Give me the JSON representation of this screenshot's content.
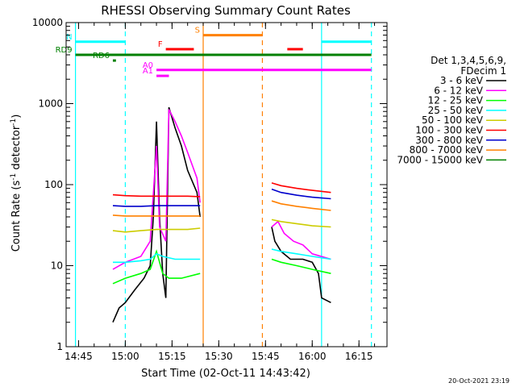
{
  "chart_data": {
    "type": "line",
    "title": "RHESSI Observing Summary Count Rates",
    "xlabel": "Start Time (02-Oct-11 14:43:42)",
    "ylabel_main": "Count Rate (s",
    "ylabel_sup1": "-1",
    "ylabel_mid": " detector",
    "ylabel_sup2": "-1",
    "ylabel_end": ")",
    "y_scale": "log",
    "xlim": [
      "14:41",
      "16:24"
    ],
    "ylim": [
      1,
      10000
    ],
    "x_ticks": [
      "14:45",
      "15:00",
      "15:15",
      "15:30",
      "15:45",
      "16:00",
      "16:15"
    ],
    "y_ticks": [
      "1",
      "10",
      "100",
      "1000",
      "10000"
    ],
    "legend": {
      "header1": "Det 1,3,4,5,6,9,",
      "header2": "FDecim 1",
      "entries": [
        {
          "label": "3 - 6 keV",
          "color": "#000000"
        },
        {
          "label": "6 - 12 keV",
          "color": "#ff00ff"
        },
        {
          "label": "12 - 25 keV",
          "color": "#00ff00"
        },
        {
          "label": "25 - 50 keV",
          "color": "#00ffff"
        },
        {
          "label": "50 - 100 keV",
          "color": "#cccc00"
        },
        {
          "label": "100 - 300 keV",
          "color": "#ff0000"
        },
        {
          "label": "300 - 800 keV",
          "color": "#0000cc"
        },
        {
          "label": "800 - 7000 keV",
          "color": "#ff8000"
        },
        {
          "label": "7000 - 15000 keV",
          "color": "#008000"
        }
      ]
    },
    "flags": [
      {
        "label": "N",
        "color": "#00ffff",
        "y": 5800,
        "segments": [
          [
            "14:44",
            "15:00"
          ],
          [
            "16:03",
            "16:19"
          ]
        ]
      },
      {
        "label": "F",
        "color": "#ff0000",
        "y": 4700,
        "segments": [
          [
            "15:13",
            "15:22"
          ],
          [
            "15:52",
            "15:57"
          ]
        ]
      },
      {
        "label": "S",
        "color": "#ff8000",
        "y": 7000,
        "segments": [
          [
            "15:25",
            "15:44"
          ]
        ]
      },
      {
        "label": "RD9",
        "color": "#008000",
        "y": 4000,
        "segments": [
          [
            "14:44",
            "16:19"
          ]
        ]
      },
      {
        "label": "RD6",
        "color": "#008000",
        "y": 3400,
        "segments": [
          [
            "14:56",
            "14:57"
          ]
        ]
      },
      {
        "label": "A0",
        "color": "#ff00ff",
        "y": 2600,
        "segments": [
          [
            "15:10",
            "16:19"
          ]
        ]
      },
      {
        "label": "A1",
        "color": "#ff00ff",
        "y": 2200,
        "segments": [
          [
            "15:10",
            "15:14"
          ]
        ]
      }
    ],
    "vertical_lines": [
      {
        "x": "14:44",
        "color": "#00ffff",
        "style": "solid"
      },
      {
        "x": "15:00",
        "color": "#00ffff",
        "style": "dashed"
      },
      {
        "x": "15:25",
        "color": "#ff8000",
        "style": "solid"
      },
      {
        "x": "15:44",
        "color": "#ff8000",
        "style": "dashed"
      },
      {
        "x": "16:03",
        "color": "#00ffff",
        "style": "solid"
      },
      {
        "x": "16:19",
        "color": "#00ffff",
        "style": "dashed"
      }
    ],
    "series": [
      {
        "name": "3 - 6 keV",
        "color": "#000000",
        "points": [
          [
            "14:56",
            "2"
          ],
          [
            "14:58",
            "3"
          ],
          [
            "15:00",
            "3.5"
          ],
          [
            "15:03",
            "5"
          ],
          [
            "15:06",
            "7"
          ],
          [
            "15:08",
            "10"
          ],
          [
            "15:09",
            "40"
          ],
          [
            "15:10",
            "600"
          ],
          [
            "15:11",
            "40"
          ],
          [
            "15:12",
            "8"
          ],
          [
            "15:13",
            "4"
          ],
          [
            "15:14",
            "900"
          ],
          [
            "15:16",
            "500"
          ],
          [
            "15:18",
            "300"
          ],
          [
            "15:20",
            "150"
          ],
          [
            "15:23",
            "80"
          ],
          [
            "15:24",
            "40"
          ],
          [
            "15:47",
            "30"
          ],
          [
            "15:48",
            "20"
          ],
          [
            "15:50",
            "15"
          ],
          [
            "15:53",
            "12"
          ],
          [
            "15:57",
            "12"
          ],
          [
            "16:00",
            "11"
          ],
          [
            "16:02",
            "8"
          ],
          [
            "16:03",
            "4"
          ],
          [
            "16:06",
            "3.5"
          ]
        ]
      },
      {
        "name": "6 - 12 keV",
        "color": "#ff00ff",
        "points": [
          [
            "14:56",
            "9"
          ],
          [
            "15:00",
            "11"
          ],
          [
            "15:05",
            "13"
          ],
          [
            "15:08",
            "20"
          ],
          [
            "15:10",
            "300"
          ],
          [
            "15:11",
            "30"
          ],
          [
            "15:13",
            "20"
          ],
          [
            "15:14",
            "850"
          ],
          [
            "15:16",
            "600"
          ],
          [
            "15:18",
            "400"
          ],
          [
            "15:20",
            "250"
          ],
          [
            "15:23",
            "120"
          ],
          [
            "15:24",
            "60"
          ],
          [
            "15:47",
            "30"
          ],
          [
            "15:49",
            "35"
          ],
          [
            "15:51",
            "25"
          ],
          [
            "15:54",
            "20"
          ],
          [
            "15:57",
            "18"
          ],
          [
            "16:00",
            "14"
          ],
          [
            "16:06",
            "12"
          ]
        ]
      },
      {
        "name": "12 - 25 keV",
        "color": "#00ff00",
        "points": [
          [
            "14:56",
            "6"
          ],
          [
            "15:00",
            "7"
          ],
          [
            "15:05",
            "8"
          ],
          [
            "15:08",
            "9"
          ],
          [
            "15:10",
            "15"
          ],
          [
            "15:12",
            "8"
          ],
          [
            "15:14",
            "7"
          ],
          [
            "15:18",
            "7"
          ],
          [
            "15:24",
            "8"
          ],
          [
            "15:47",
            "12"
          ],
          [
            "15:50",
            "11"
          ],
          [
            "15:55",
            "10"
          ],
          [
            "16:00",
            "9"
          ],
          [
            "16:06",
            "8"
          ]
        ]
      },
      {
        "name": "25 - 50 keV",
        "color": "#00ffff",
        "points": [
          [
            "14:56",
            "11"
          ],
          [
            "15:00",
            "11"
          ],
          [
            "15:05",
            "11.5"
          ],
          [
            "15:08",
            "12"
          ],
          [
            "15:10",
            "14"
          ],
          [
            "15:12",
            "13"
          ],
          [
            "15:16",
            "12"
          ],
          [
            "15:20",
            "12"
          ],
          [
            "15:24",
            "12"
          ],
          [
            "15:47",
            "16"
          ],
          [
            "15:50",
            "15"
          ],
          [
            "15:55",
            "14"
          ],
          [
            "16:00",
            "13"
          ],
          [
            "16:06",
            "12"
          ]
        ]
      },
      {
        "name": "50 - 100 keV",
        "color": "#cccc00",
        "points": [
          [
            "14:56",
            "27"
          ],
          [
            "15:00",
            "26"
          ],
          [
            "15:05",
            "27"
          ],
          [
            "15:10",
            "28"
          ],
          [
            "15:15",
            "28"
          ],
          [
            "15:20",
            "28"
          ],
          [
            "15:24",
            "29"
          ],
          [
            "15:47",
            "37"
          ],
          [
            "15:50",
            "35"
          ],
          [
            "15:55",
            "33"
          ],
          [
            "16:00",
            "31"
          ],
          [
            "16:06",
            "30"
          ]
        ]
      },
      {
        "name": "100 - 300 keV",
        "color": "#ff0000",
        "points": [
          [
            "14:56",
            "75"
          ],
          [
            "15:00",
            "73"
          ],
          [
            "15:05",
            "72"
          ],
          [
            "15:10",
            "72"
          ],
          [
            "15:15",
            "72"
          ],
          [
            "15:20",
            "72"
          ],
          [
            "15:24",
            "71"
          ],
          [
            "15:47",
            "105"
          ],
          [
            "15:50",
            "97"
          ],
          [
            "15:55",
            "90"
          ],
          [
            "16:00",
            "85"
          ],
          [
            "16:06",
            "80"
          ]
        ]
      },
      {
        "name": "300 - 800 keV",
        "color": "#0000cc",
        "points": [
          [
            "14:56",
            "55"
          ],
          [
            "15:00",
            "54"
          ],
          [
            "15:05",
            "54"
          ],
          [
            "15:10",
            "55"
          ],
          [
            "15:15",
            "55"
          ],
          [
            "15:20",
            "55"
          ],
          [
            "15:24",
            "55"
          ],
          [
            "15:47",
            "88"
          ],
          [
            "15:50",
            "80"
          ],
          [
            "15:55",
            "74"
          ],
          [
            "16:00",
            "70"
          ],
          [
            "16:06",
            "67"
          ]
        ]
      },
      {
        "name": "800 - 7000 keV",
        "color": "#ff8000",
        "points": [
          [
            "14:56",
            "42"
          ],
          [
            "15:00",
            "41"
          ],
          [
            "15:05",
            "41"
          ],
          [
            "15:10",
            "41"
          ],
          [
            "15:15",
            "41"
          ],
          [
            "15:20",
            "41"
          ],
          [
            "15:24",
            "41"
          ],
          [
            "15:47",
            "63"
          ],
          [
            "15:50",
            "58"
          ],
          [
            "15:55",
            "54"
          ],
          [
            "16:00",
            "51"
          ],
          [
            "16:06",
            "48"
          ]
        ]
      },
      {
        "name": "7000 - 15000 keV",
        "color": "#008000",
        "points": []
      }
    ],
    "grid": false,
    "legend_placement": "right"
  },
  "footer_timestamp": "20-Oct-2021 23:19"
}
